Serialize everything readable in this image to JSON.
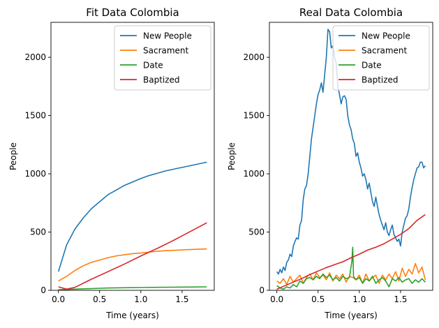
{
  "chart_data": [
    {
      "type": "line",
      "title": "Fit Data Colombia",
      "xlabel": "Time (years)",
      "ylabel": "People",
      "xlim": [
        -0.09,
        1.89
      ],
      "ylim": [
        0,
        2300
      ],
      "xticks": [
        "0.0",
        "0.5",
        "1.0",
        "1.5"
      ],
      "yticks": [
        "0",
        "500",
        "1000",
        "1500",
        "2000"
      ],
      "legend_position": "top-right",
      "grid": false,
      "series": [
        {
          "name": "New People",
          "color": "#1f77b4",
          "x": [
            0.0,
            0.1,
            0.2,
            0.3,
            0.4,
            0.5,
            0.6,
            0.7,
            0.8,
            0.9,
            1.0,
            1.1,
            1.2,
            1.3,
            1.4,
            1.5,
            1.6,
            1.7,
            1.8
          ],
          "y": [
            160,
            390,
            525,
            620,
            700,
            760,
            820,
            860,
            900,
            930,
            960,
            985,
            1005,
            1025,
            1040,
            1055,
            1070,
            1085,
            1100
          ]
        },
        {
          "name": "Sacrament",
          "color": "#ff7f0e",
          "x": [
            0.0,
            0.1,
            0.2,
            0.3,
            0.4,
            0.5,
            0.6,
            0.7,
            0.8,
            0.9,
            1.0,
            1.1,
            1.2,
            1.3,
            1.4,
            1.5,
            1.6,
            1.7,
            1.8
          ],
          "y": [
            80,
            120,
            170,
            210,
            240,
            260,
            280,
            295,
            305,
            315,
            320,
            328,
            335,
            340,
            343,
            347,
            350,
            353,
            355
          ]
        },
        {
          "name": "Date",
          "color": "#2ca02c",
          "x": [
            0.0,
            0.2,
            0.4,
            0.6,
            0.8,
            1.0,
            1.2,
            1.4,
            1.6,
            1.8
          ],
          "y": [
            5,
            10,
            15,
            20,
            22,
            24,
            26,
            27,
            28,
            30
          ]
        },
        {
          "name": "Baptized",
          "color": "#d62728",
          "x": [
            0.0,
            0.1,
            0.2,
            0.4,
            0.6,
            0.8,
            1.0,
            1.2,
            1.4,
            1.6,
            1.8
          ],
          "y": [
            30,
            10,
            25,
            95,
            160,
            225,
            295,
            360,
            430,
            505,
            580
          ]
        }
      ]
    },
    {
      "type": "line",
      "title": "Real Data Colombia",
      "xlabel": "Time (years)",
      "ylabel": "People",
      "xlim": [
        -0.09,
        1.89
      ],
      "ylim": [
        0,
        2300
      ],
      "xticks": [
        "0.0",
        "0.5",
        "1.0",
        "1.5"
      ],
      "yticks": [
        "0",
        "500",
        "1000",
        "1500",
        "2000"
      ],
      "legend_position": "top-right",
      "grid": false,
      "series": [
        {
          "name": "New People",
          "color": "#1f77b4",
          "x": [
            0.0,
            0.02,
            0.04,
            0.06,
            0.08,
            0.1,
            0.12,
            0.14,
            0.16,
            0.18,
            0.2,
            0.22,
            0.24,
            0.26,
            0.28,
            0.3,
            0.32,
            0.34,
            0.36,
            0.38,
            0.4,
            0.42,
            0.44,
            0.46,
            0.48,
            0.5,
            0.52,
            0.54,
            0.56,
            0.58,
            0.6,
            0.62,
            0.64,
            0.66,
            0.68,
            0.7,
            0.72,
            0.74,
            0.76,
            0.78,
            0.8,
            0.82,
            0.84,
            0.86,
            0.88,
            0.9,
            0.92,
            0.94,
            0.96,
            0.98,
            1.0,
            1.02,
            1.04,
            1.06,
            1.08,
            1.1,
            1.12,
            1.14,
            1.16,
            1.18,
            1.2,
            1.22,
            1.24,
            1.26,
            1.28,
            1.3,
            1.32,
            1.34,
            1.36,
            1.38,
            1.4,
            1.42,
            1.44,
            1.46,
            1.48,
            1.5,
            1.52,
            1.54,
            1.56,
            1.58,
            1.6,
            1.62,
            1.64,
            1.66,
            1.68,
            1.7,
            1.72,
            1.74,
            1.76,
            1.78,
            1.8
          ],
          "y": [
            160,
            140,
            180,
            150,
            200,
            170,
            240,
            260,
            310,
            290,
            380,
            420,
            450,
            440,
            560,
            600,
            780,
            870,
            900,
            1000,
            1150,
            1300,
            1400,
            1500,
            1600,
            1680,
            1720,
            1780,
            1700,
            1850,
            2000,
            2240,
            2220,
            2080,
            2100,
            2000,
            1950,
            1750,
            1680,
            1600,
            1660,
            1670,
            1640,
            1500,
            1420,
            1380,
            1300,
            1260,
            1150,
            1180,
            1100,
            1050,
            980,
            1000,
            950,
            870,
            920,
            840,
            760,
            720,
            800,
            720,
            650,
            600,
            560,
            520,
            580,
            500,
            470,
            520,
            560,
            480,
            450,
            420,
            440,
            380,
            500,
            560,
            620,
            640,
            700,
            800,
            880,
            950,
            1000,
            1050,
            1060,
            1100,
            1100,
            1050,
            1070
          ]
        },
        {
          "name": "Sacrament",
          "color": "#ff7f0e",
          "x": [
            0.0,
            0.04,
            0.08,
            0.12,
            0.16,
            0.2,
            0.24,
            0.28,
            0.32,
            0.36,
            0.4,
            0.44,
            0.48,
            0.52,
            0.56,
            0.6,
            0.64,
            0.68,
            0.72,
            0.76,
            0.8,
            0.84,
            0.88,
            0.92,
            0.96,
            1.0,
            1.04,
            1.08,
            1.12,
            1.16,
            1.2,
            1.24,
            1.28,
            1.32,
            1.36,
            1.4,
            1.44,
            1.48,
            1.52,
            1.56,
            1.6,
            1.64,
            1.68,
            1.72,
            1.76,
            1.8
          ],
          "y": [
            80,
            60,
            100,
            50,
            120,
            70,
            100,
            130,
            60,
            110,
            140,
            90,
            150,
            110,
            130,
            90,
            150,
            80,
            130,
            100,
            140,
            70,
            120,
            110,
            90,
            130,
            60,
            140,
            80,
            110,
            130,
            60,
            130,
            90,
            140,
            100,
            160,
            80,
            190,
            120,
            180,
            140,
            230,
            150,
            200,
            90
          ]
        },
        {
          "name": "Date",
          "color": "#2ca02c",
          "x": [
            0.0,
            0.04,
            0.08,
            0.12,
            0.16,
            0.2,
            0.24,
            0.28,
            0.32,
            0.36,
            0.4,
            0.44,
            0.48,
            0.52,
            0.56,
            0.6,
            0.64,
            0.68,
            0.72,
            0.76,
            0.8,
            0.84,
            0.88,
            0.91,
            0.92,
            0.93,
            0.96,
            1.0,
            1.04,
            1.08,
            1.12,
            1.16,
            1.2,
            1.24,
            1.28,
            1.32,
            1.36,
            1.4,
            1.44,
            1.48,
            1.52,
            1.56,
            1.6,
            1.64,
            1.68,
            1.72,
            1.76,
            1.8
          ],
          "y": [
            40,
            20,
            10,
            30,
            20,
            50,
            30,
            80,
            60,
            100,
            110,
            90,
            120,
            100,
            140,
            110,
            130,
            90,
            110,
            80,
            120,
            100,
            110,
            250,
            370,
            120,
            90,
            110,
            60,
            100,
            80,
            120,
            60,
            90,
            110,
            80,
            30,
            100,
            80,
            110,
            70,
            90,
            100,
            60,
            90,
            70,
            100,
            70
          ]
        },
        {
          "name": "Baptized",
          "color": "#d62728",
          "x": [
            0.0,
            0.1,
            0.2,
            0.3,
            0.4,
            0.5,
            0.6,
            0.7,
            0.8,
            0.9,
            1.0,
            1.1,
            1.2,
            1.3,
            1.4,
            1.5,
            1.6,
            1.7,
            1.8
          ],
          "y": [
            10,
            40,
            70,
            100,
            135,
            165,
            195,
            220,
            245,
            280,
            310,
            345,
            370,
            400,
            440,
            480,
            530,
            600,
            650
          ]
        }
      ]
    }
  ]
}
